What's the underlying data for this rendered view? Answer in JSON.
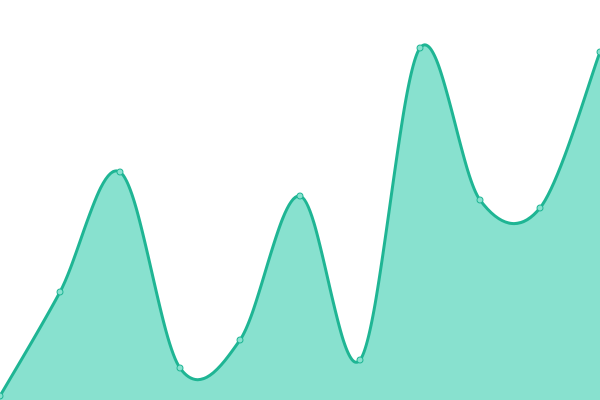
{
  "chart_data": {
    "type": "area",
    "x": [
      0,
      1,
      2,
      3,
      4,
      5,
      6,
      7,
      8,
      9,
      10
    ],
    "values": [
      1,
      27,
      57,
      8,
      15,
      51,
      10,
      88,
      50,
      48,
      87
    ],
    "xlim": [
      0,
      10
    ],
    "ylim": [
      0,
      100
    ],
    "color": "#1fb594",
    "fill": "#88e1cf"
  }
}
